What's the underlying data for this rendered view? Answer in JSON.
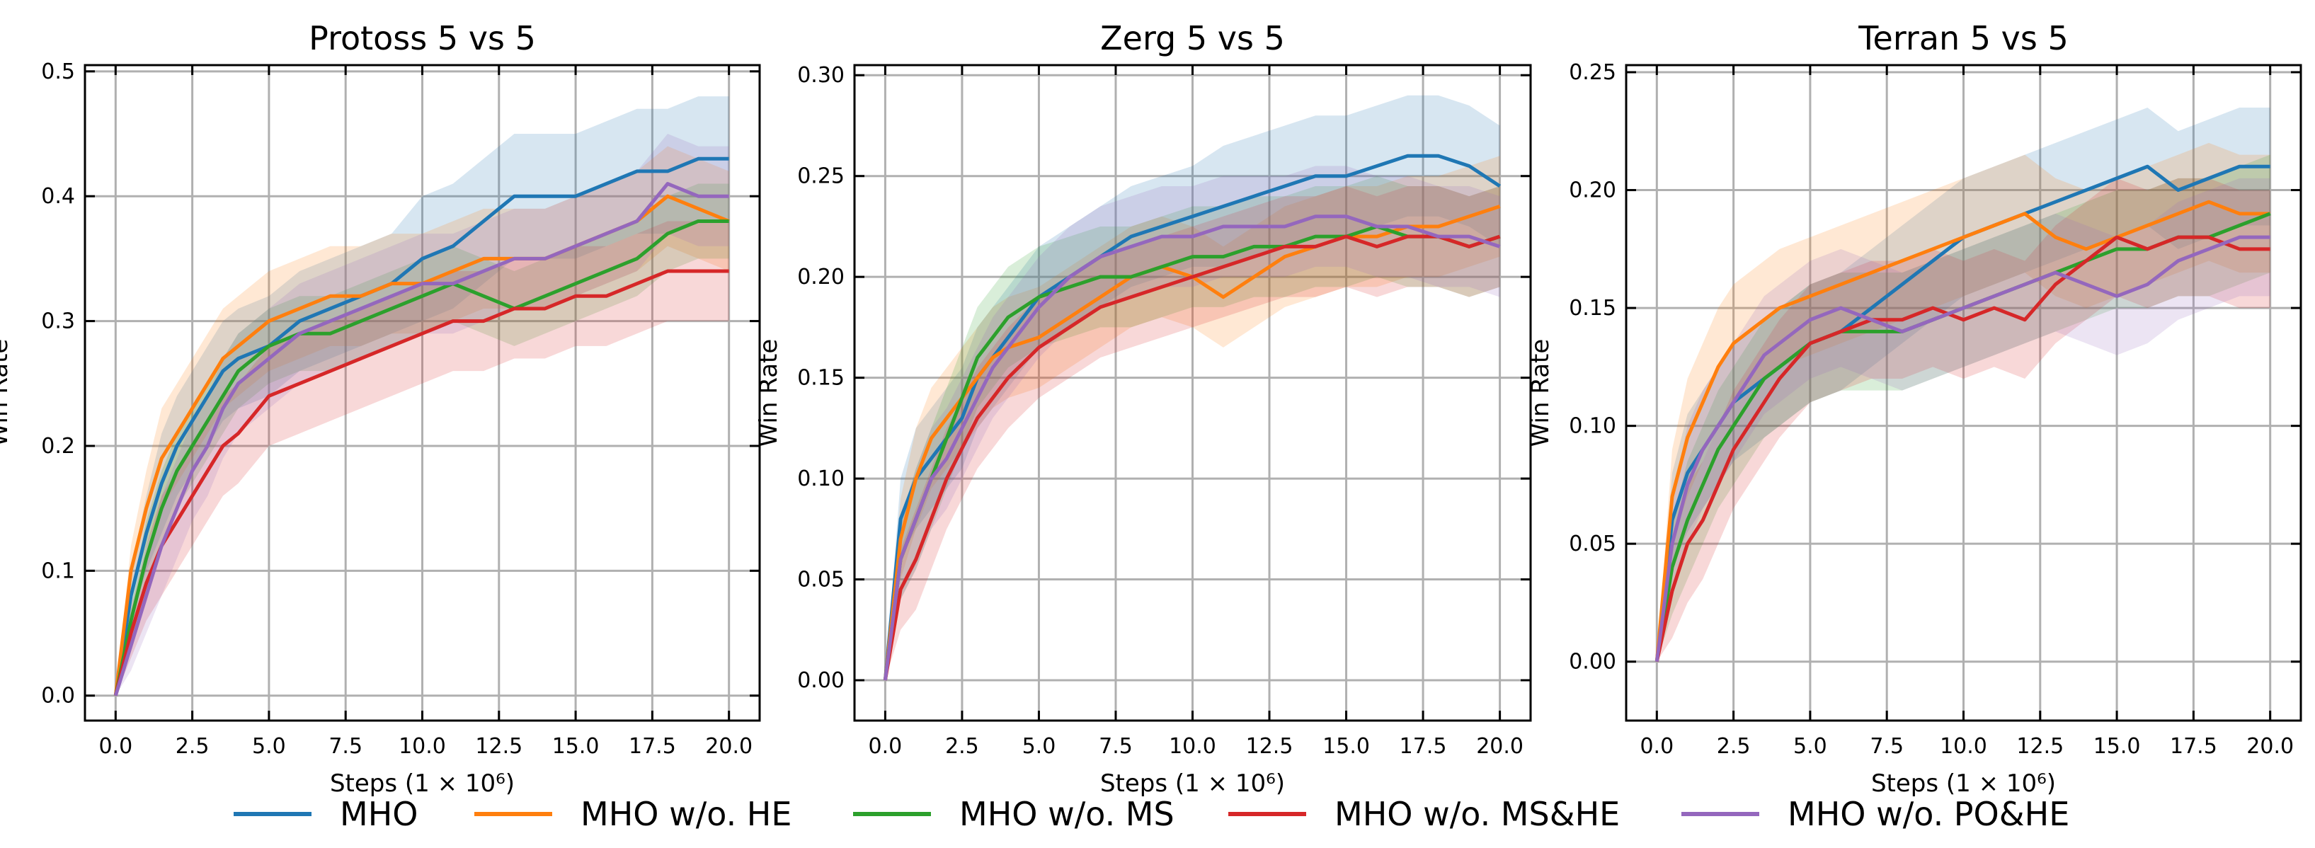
{
  "legend": [
    {
      "name": "MHO",
      "color": "#1f77b4"
    },
    {
      "name": "MHO w/o. HE",
      "color": "#ff7f0e"
    },
    {
      "name": "MHO w/o. MS",
      "color": "#2ca02c"
    },
    {
      "name": "MHO w/o. MS&HE",
      "color": "#d62728"
    },
    {
      "name": "MHO w/o. PO&HE",
      "color": "#9467bd"
    }
  ],
  "chart_data": [
    {
      "type": "line",
      "title": "Protoss 5 vs 5",
      "xlabel": "Steps (1 × 10⁶)",
      "ylabel": "Win Rate",
      "xlim": [
        -1.0,
        21.0
      ],
      "ylim": [
        -0.02,
        0.505
      ],
      "xticks": [
        "0.0",
        "2.5",
        "5.0",
        "7.5",
        "10.0",
        "12.5",
        "15.0",
        "17.5",
        "20.0"
      ],
      "yticks": [
        "0.0",
        "0.1",
        "0.2",
        "0.3",
        "0.4",
        "0.5"
      ],
      "x": [
        0,
        0.5,
        1,
        1.5,
        2,
        2.5,
        3,
        3.5,
        4,
        5,
        6,
        7,
        8,
        9,
        10,
        11,
        12,
        13,
        14,
        15,
        16,
        17,
        18,
        19,
        20
      ],
      "series": [
        {
          "name": "MHO",
          "values": [
            0.0,
            0.08,
            0.13,
            0.17,
            0.2,
            0.22,
            0.24,
            0.26,
            0.27,
            0.28,
            0.3,
            0.31,
            0.32,
            0.33,
            0.35,
            0.36,
            0.38,
            0.4,
            0.4,
            0.4,
            0.41,
            0.42,
            0.42,
            0.43,
            0.43
          ],
          "band": [
            0.0,
            0.02,
            0.03,
            0.04,
            0.04,
            0.04,
            0.04,
            0.04,
            0.04,
            0.04,
            0.04,
            0.04,
            0.04,
            0.04,
            0.05,
            0.05,
            0.05,
            0.05,
            0.05,
            0.05,
            0.05,
            0.05,
            0.05,
            0.05,
            0.05
          ]
        },
        {
          "name": "MHO w/o. HE",
          "values": [
            0.0,
            0.1,
            0.15,
            0.19,
            0.21,
            0.23,
            0.25,
            0.27,
            0.28,
            0.3,
            0.31,
            0.32,
            0.32,
            0.33,
            0.33,
            0.34,
            0.35,
            0.35,
            0.35,
            0.36,
            0.37,
            0.38,
            0.4,
            0.39,
            0.38
          ],
          "band": [
            0.0,
            0.02,
            0.03,
            0.04,
            0.04,
            0.04,
            0.04,
            0.04,
            0.04,
            0.04,
            0.04,
            0.04,
            0.04,
            0.04,
            0.04,
            0.04,
            0.04,
            0.04,
            0.04,
            0.04,
            0.04,
            0.04,
            0.04,
            0.04,
            0.04
          ]
        },
        {
          "name": "MHO w/o. MS",
          "values": [
            0.0,
            0.06,
            0.11,
            0.15,
            0.18,
            0.2,
            0.22,
            0.24,
            0.26,
            0.28,
            0.29,
            0.29,
            0.3,
            0.31,
            0.32,
            0.33,
            0.32,
            0.31,
            0.32,
            0.33,
            0.34,
            0.35,
            0.37,
            0.38,
            0.38
          ],
          "band": [
            0.0,
            0.02,
            0.03,
            0.03,
            0.03,
            0.03,
            0.03,
            0.03,
            0.03,
            0.03,
            0.03,
            0.03,
            0.03,
            0.03,
            0.03,
            0.03,
            0.03,
            0.03,
            0.03,
            0.03,
            0.03,
            0.03,
            0.03,
            0.03,
            0.03
          ]
        },
        {
          "name": "MHO w/o. MS&HE",
          "values": [
            0.0,
            0.05,
            0.09,
            0.12,
            0.14,
            0.16,
            0.18,
            0.2,
            0.21,
            0.24,
            0.25,
            0.26,
            0.27,
            0.28,
            0.29,
            0.3,
            0.3,
            0.31,
            0.31,
            0.32,
            0.32,
            0.33,
            0.34,
            0.34,
            0.34
          ],
          "band": [
            0.0,
            0.02,
            0.03,
            0.04,
            0.04,
            0.04,
            0.04,
            0.04,
            0.04,
            0.04,
            0.04,
            0.04,
            0.04,
            0.04,
            0.04,
            0.04,
            0.04,
            0.04,
            0.04,
            0.04,
            0.04,
            0.04,
            0.04,
            0.04,
            0.04
          ]
        },
        {
          "name": "MHO w/o. PO&HE",
          "values": [
            0.0,
            0.04,
            0.08,
            0.12,
            0.15,
            0.18,
            0.2,
            0.23,
            0.25,
            0.27,
            0.29,
            0.3,
            0.31,
            0.32,
            0.33,
            0.33,
            0.34,
            0.35,
            0.35,
            0.36,
            0.37,
            0.38,
            0.41,
            0.4,
            0.4
          ],
          "band": [
            0.0,
            0.02,
            0.03,
            0.04,
            0.04,
            0.04,
            0.04,
            0.04,
            0.04,
            0.04,
            0.04,
            0.04,
            0.04,
            0.04,
            0.04,
            0.04,
            0.04,
            0.04,
            0.04,
            0.04,
            0.04,
            0.04,
            0.04,
            0.04,
            0.04
          ]
        }
      ]
    },
    {
      "type": "line",
      "title": "Zerg 5 vs 5",
      "xlabel": "Steps (1 × 10⁶)",
      "ylabel": "Win Rate",
      "xlim": [
        -1.0,
        21.0
      ],
      "ylim": [
        -0.02,
        0.305
      ],
      "xticks": [
        "0.0",
        "2.5",
        "5.0",
        "7.5",
        "10.0",
        "12.5",
        "15.0",
        "17.5",
        "20.0"
      ],
      "yticks": [
        "0.00",
        "0.05",
        "0.10",
        "0.15",
        "0.20",
        "0.25",
        "0.30"
      ],
      "x": [
        0,
        0.5,
        1,
        1.5,
        2,
        2.5,
        3,
        3.5,
        4,
        5,
        6,
        7,
        8,
        9,
        10,
        11,
        12,
        13,
        14,
        15,
        16,
        17,
        18,
        19,
        20
      ],
      "series": [
        {
          "name": "MHO",
          "values": [
            0.0,
            0.08,
            0.1,
            0.11,
            0.12,
            0.13,
            0.15,
            0.16,
            0.17,
            0.19,
            0.2,
            0.21,
            0.22,
            0.225,
            0.23,
            0.235,
            0.24,
            0.245,
            0.25,
            0.25,
            0.255,
            0.26,
            0.26,
            0.255,
            0.245
          ],
          "band": [
            0.0,
            0.02,
            0.025,
            0.025,
            0.025,
            0.025,
            0.025,
            0.025,
            0.025,
            0.025,
            0.025,
            0.025,
            0.025,
            0.025,
            0.025,
            0.03,
            0.03,
            0.03,
            0.03,
            0.03,
            0.03,
            0.03,
            0.03,
            0.03,
            0.03
          ]
        },
        {
          "name": "MHO w/o. HE",
          "values": [
            0.0,
            0.07,
            0.1,
            0.12,
            0.13,
            0.14,
            0.15,
            0.16,
            0.165,
            0.17,
            0.18,
            0.19,
            0.2,
            0.205,
            0.2,
            0.19,
            0.2,
            0.21,
            0.215,
            0.22,
            0.22,
            0.225,
            0.225,
            0.23,
            0.235
          ],
          "band": [
            0.0,
            0.02,
            0.025,
            0.025,
            0.025,
            0.025,
            0.025,
            0.025,
            0.025,
            0.025,
            0.025,
            0.025,
            0.025,
            0.025,
            0.025,
            0.025,
            0.025,
            0.025,
            0.025,
            0.025,
            0.025,
            0.025,
            0.025,
            0.025,
            0.025
          ]
        },
        {
          "name": "MHO w/o. MS",
          "values": [
            0.0,
            0.06,
            0.08,
            0.1,
            0.12,
            0.14,
            0.16,
            0.17,
            0.18,
            0.19,
            0.195,
            0.2,
            0.2,
            0.205,
            0.21,
            0.21,
            0.215,
            0.215,
            0.22,
            0.22,
            0.225,
            0.22,
            0.22,
            0.215,
            0.22
          ],
          "band": [
            0.0,
            0.02,
            0.025,
            0.025,
            0.025,
            0.025,
            0.025,
            0.025,
            0.025,
            0.025,
            0.025,
            0.025,
            0.025,
            0.025,
            0.025,
            0.025,
            0.025,
            0.025,
            0.025,
            0.025,
            0.025,
            0.025,
            0.025,
            0.025,
            0.025
          ]
        },
        {
          "name": "MHO w/o. MS&HE",
          "values": [
            0.0,
            0.045,
            0.06,
            0.08,
            0.1,
            0.115,
            0.13,
            0.14,
            0.15,
            0.165,
            0.175,
            0.185,
            0.19,
            0.195,
            0.2,
            0.205,
            0.21,
            0.215,
            0.215,
            0.22,
            0.215,
            0.22,
            0.22,
            0.215,
            0.22
          ],
          "band": [
            0.0,
            0.02,
            0.025,
            0.025,
            0.025,
            0.025,
            0.025,
            0.025,
            0.025,
            0.025,
            0.025,
            0.025,
            0.025,
            0.025,
            0.025,
            0.025,
            0.025,
            0.025,
            0.025,
            0.025,
            0.025,
            0.025,
            0.025,
            0.025,
            0.025
          ]
        },
        {
          "name": "MHO w/o. PO&HE",
          "values": [
            0.0,
            0.06,
            0.08,
            0.1,
            0.11,
            0.125,
            0.14,
            0.155,
            0.165,
            0.185,
            0.2,
            0.21,
            0.215,
            0.22,
            0.22,
            0.225,
            0.225,
            0.225,
            0.23,
            0.23,
            0.225,
            0.225,
            0.22,
            0.22,
            0.215
          ],
          "band": [
            0.0,
            0.02,
            0.025,
            0.025,
            0.025,
            0.025,
            0.025,
            0.025,
            0.025,
            0.025,
            0.025,
            0.025,
            0.025,
            0.025,
            0.025,
            0.025,
            0.025,
            0.025,
            0.025,
            0.025,
            0.025,
            0.025,
            0.025,
            0.025,
            0.025
          ]
        }
      ]
    },
    {
      "type": "line",
      "title": "Terran 5 vs 5",
      "xlabel": "Steps (1 × 10⁶)",
      "ylabel": "Win Rate",
      "xlim": [
        -1.0,
        21.0
      ],
      "ylim": [
        -0.025,
        0.253
      ],
      "xticks": [
        "0.0",
        "2.5",
        "5.0",
        "7.5",
        "10.0",
        "12.5",
        "15.0",
        "17.5",
        "20.0"
      ],
      "yticks": [
        "0.00",
        "0.05",
        "0.10",
        "0.15",
        "0.20",
        "0.25"
      ],
      "x": [
        0,
        0.5,
        1,
        1.5,
        2,
        2.5,
        3,
        3.5,
        4,
        5,
        6,
        7,
        8,
        9,
        10,
        11,
        12,
        13,
        14,
        15,
        16,
        17,
        18,
        19,
        20
      ],
      "series": [
        {
          "name": "MHO",
          "values": [
            0.0,
            0.06,
            0.08,
            0.09,
            0.1,
            0.11,
            0.115,
            0.12,
            0.125,
            0.135,
            0.14,
            0.15,
            0.16,
            0.17,
            0.18,
            0.185,
            0.19,
            0.195,
            0.2,
            0.205,
            0.21,
            0.2,
            0.205,
            0.21,
            0.21
          ],
          "band": [
            0.0,
            0.02,
            0.025,
            0.025,
            0.025,
            0.025,
            0.025,
            0.025,
            0.025,
            0.025,
            0.025,
            0.025,
            0.025,
            0.025,
            0.025,
            0.025,
            0.025,
            0.025,
            0.025,
            0.025,
            0.025,
            0.025,
            0.025,
            0.025,
            0.025
          ]
        },
        {
          "name": "MHO w/o. HE",
          "values": [
            0.0,
            0.07,
            0.095,
            0.11,
            0.125,
            0.135,
            0.14,
            0.145,
            0.15,
            0.155,
            0.16,
            0.165,
            0.17,
            0.175,
            0.18,
            0.185,
            0.19,
            0.18,
            0.175,
            0.18,
            0.185,
            0.19,
            0.195,
            0.19,
            0.19
          ],
          "band": [
            0.0,
            0.02,
            0.025,
            0.025,
            0.025,
            0.025,
            0.025,
            0.025,
            0.025,
            0.025,
            0.025,
            0.025,
            0.025,
            0.025,
            0.025,
            0.025,
            0.025,
            0.025,
            0.025,
            0.025,
            0.025,
            0.025,
            0.025,
            0.025,
            0.025
          ]
        },
        {
          "name": "MHO w/o. MS",
          "values": [
            0.0,
            0.04,
            0.06,
            0.075,
            0.09,
            0.1,
            0.11,
            0.12,
            0.125,
            0.135,
            0.14,
            0.14,
            0.14,
            0.145,
            0.15,
            0.155,
            0.16,
            0.165,
            0.17,
            0.175,
            0.175,
            0.18,
            0.18,
            0.185,
            0.19
          ],
          "band": [
            0.0,
            0.02,
            0.025,
            0.025,
            0.025,
            0.025,
            0.025,
            0.025,
            0.025,
            0.025,
            0.025,
            0.025,
            0.025,
            0.025,
            0.025,
            0.025,
            0.025,
            0.025,
            0.025,
            0.025,
            0.025,
            0.025,
            0.025,
            0.025,
            0.025
          ]
        },
        {
          "name": "MHO w/o. MS&HE",
          "values": [
            0.0,
            0.03,
            0.05,
            0.06,
            0.075,
            0.09,
            0.1,
            0.11,
            0.12,
            0.135,
            0.14,
            0.145,
            0.145,
            0.15,
            0.145,
            0.15,
            0.145,
            0.16,
            0.17,
            0.18,
            0.175,
            0.18,
            0.18,
            0.175,
            0.175
          ],
          "band": [
            0.0,
            0.02,
            0.025,
            0.025,
            0.025,
            0.025,
            0.025,
            0.025,
            0.025,
            0.025,
            0.025,
            0.025,
            0.025,
            0.025,
            0.025,
            0.025,
            0.025,
            0.025,
            0.025,
            0.025,
            0.025,
            0.025,
            0.025,
            0.025,
            0.025
          ]
        },
        {
          "name": "MHO w/o. PO&HE",
          "values": [
            0.0,
            0.05,
            0.075,
            0.09,
            0.1,
            0.11,
            0.12,
            0.13,
            0.135,
            0.145,
            0.15,
            0.145,
            0.14,
            0.145,
            0.15,
            0.155,
            0.16,
            0.165,
            0.16,
            0.155,
            0.16,
            0.17,
            0.175,
            0.18,
            0.18
          ],
          "band": [
            0.0,
            0.02,
            0.025,
            0.025,
            0.025,
            0.025,
            0.025,
            0.025,
            0.025,
            0.025,
            0.025,
            0.025,
            0.025,
            0.025,
            0.025,
            0.025,
            0.025,
            0.025,
            0.025,
            0.025,
            0.025,
            0.025,
            0.025,
            0.025,
            0.025
          ]
        }
      ]
    }
  ]
}
